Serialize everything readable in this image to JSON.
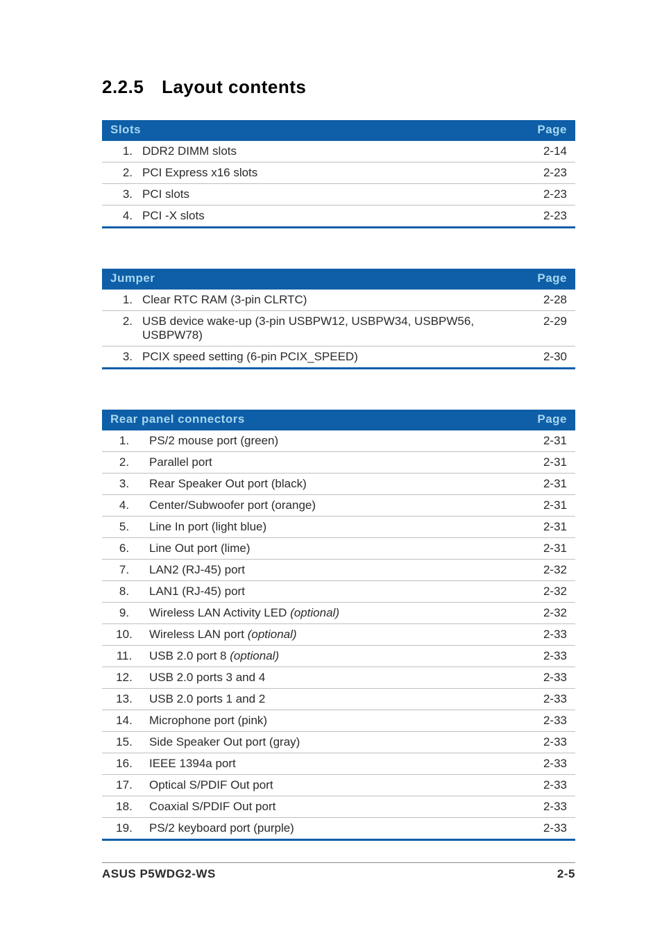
{
  "section": {
    "number": "2.2.5",
    "title": "Layout contents"
  },
  "tables": {
    "slots": {
      "header": {
        "label": "Slots",
        "page": "Page"
      },
      "rows": [
        {
          "n": "1.",
          "desc": "DDR2 DIMM slots",
          "page": "2-14"
        },
        {
          "n": "2.",
          "desc": "PCI Express x16 slots",
          "page": "2-23"
        },
        {
          "n": "3.",
          "desc": "PCI slots",
          "page": "2-23"
        },
        {
          "n": "4.",
          "desc": "PCI -X slots",
          "page": "2-23"
        }
      ]
    },
    "jumper": {
      "header": {
        "label": "Jumper",
        "page": "Page"
      },
      "rows": [
        {
          "n": "1.",
          "desc": "Clear RTC RAM (3-pin CLRTC)",
          "page": "2-28"
        },
        {
          "n": "2.",
          "desc": "USB device wake-up (3-pin USBPW12, USBPW34, USBPW56, USBPW78)",
          "page": "2-29"
        },
        {
          "n": "3.",
          "desc": "PCIX speed setting (6-pin PCIX_SPEED)",
          "page": "2-30"
        }
      ]
    },
    "rear": {
      "header": {
        "label": "Rear panel connectors",
        "page": "Page"
      },
      "rows": [
        {
          "n": "1.",
          "desc": "PS/2 mouse port (green)",
          "page": "2-31"
        },
        {
          "n": "2.",
          "desc": "Parallel port",
          "page": "2-31"
        },
        {
          "n": "3.",
          "desc": "Rear Speaker Out port (black)",
          "page": "2-31"
        },
        {
          "n": "4.",
          "desc": "Center/Subwoofer port (orange)",
          "page": "2-31"
        },
        {
          "n": "5.",
          "desc": "Line In port (light blue)",
          "page": "2-31"
        },
        {
          "n": "6.",
          "desc": "Line Out port (lime)",
          "page": "2-31"
        },
        {
          "n": "7.",
          "desc": "LAN2 (RJ-45) port",
          "page": "2-32"
        },
        {
          "n": "8.",
          "desc": "LAN1 (RJ-45) port",
          "page": "2-32"
        },
        {
          "n": "9.",
          "desc": "Wireless LAN Activity LED ",
          "italic": "(optional)",
          "page": "2-32"
        },
        {
          "n": "10.",
          "desc": "Wireless LAN port ",
          "italic": "(optional)",
          "page": "2-33"
        },
        {
          "n": "11.",
          "desc": "USB 2.0 port 8 ",
          "italic": "(optional)",
          "page": "2-33"
        },
        {
          "n": "12.",
          "desc": "USB 2.0 ports 3 and 4",
          "page": "2-33"
        },
        {
          "n": "13.",
          "desc": "USB 2.0 ports 1 and 2",
          "page": "2-33"
        },
        {
          "n": "14.",
          "desc": "Microphone port (pink)",
          "page": "2-33"
        },
        {
          "n": "15.",
          "desc": "Side Speaker Out port (gray)",
          "page": "2-33"
        },
        {
          "n": "16.",
          "desc": "IEEE 1394a port",
          "page": "2-33"
        },
        {
          "n": "17.",
          "desc": "Optical S/PDIF Out port",
          "page": "2-33"
        },
        {
          "n": "18.",
          "desc": "Coaxial S/PDIF Out port",
          "page": "2-33"
        },
        {
          "n": "19.",
          "desc": "PS/2 keyboard port (purple)",
          "page": "2-33"
        }
      ]
    }
  },
  "footer": {
    "left": "ASUS P5WDG2-WS",
    "right": "2-5"
  },
  "colors": {
    "header_bg": "#0e5ea8",
    "header_text": "#a8d8ef",
    "row_border": "#bfbfbf",
    "table_bottom_border": "#0e5ea8",
    "body_text": "#2a2a2a",
    "footer_border": "#8a8a8a",
    "background": "#ffffff"
  },
  "typography": {
    "title_fontsize": 26,
    "body_fontsize": 17,
    "header_fontsize": 17,
    "footer_fontsize": 17,
    "font_family": "Arial, Helvetica, sans-serif"
  }
}
